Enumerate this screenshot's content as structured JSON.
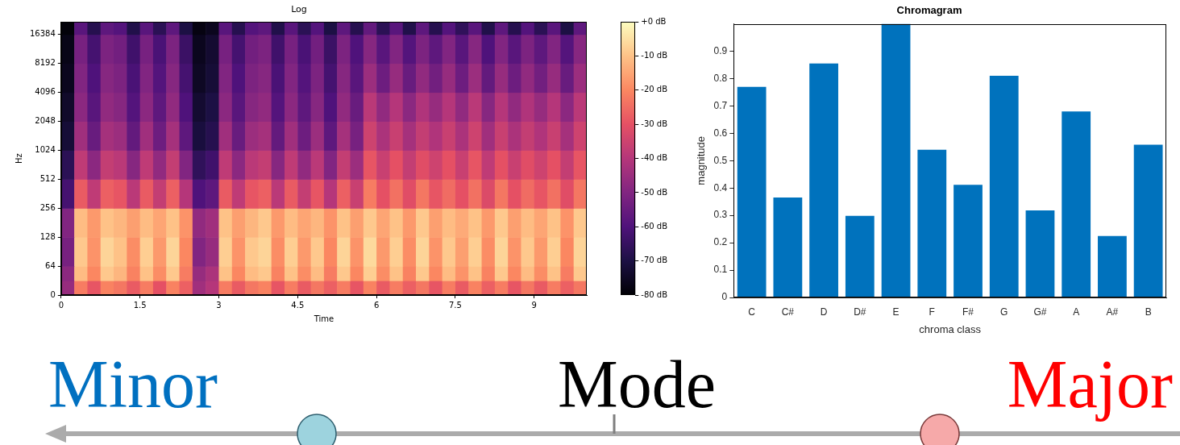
{
  "chart_data": [
    {
      "type": "heatmap",
      "title": "Log",
      "x_label": "Time",
      "y_label": "Hz",
      "log": "y",
      "grid": false,
      "xlim": [
        0,
        10
      ],
      "xticks": [
        0,
        1.5,
        3,
        4.5,
        6,
        7.5,
        9
      ],
      "ylim": [
        0,
        22050
      ],
      "yticks": [
        0,
        64,
        128,
        256,
        512,
        1024,
        2048,
        4096,
        8192,
        16384
      ],
      "x_edges": [
        0,
        0.25,
        0.5,
        0.75,
        1,
        1.25,
        1.5,
        1.75,
        2,
        2.25,
        2.5,
        2.75,
        3,
        3.25,
        3.5,
        3.75,
        4,
        4.25,
        4.5,
        4.75,
        5,
        5.25,
        5.5,
        5.75,
        6,
        6.25,
        6.5,
        6.75,
        7,
        7.25,
        7.5,
        7.75,
        8,
        8.25,
        8.5,
        8.75,
        9,
        9.25,
        9.5,
        9.75,
        10
      ],
      "y_edges": [
        0,
        32,
        64,
        128,
        256,
        512,
        1024,
        2048,
        4096,
        8192,
        16384,
        22050
      ],
      "cells": [
        [
          -46,
          -22,
          -29,
          -21,
          -23,
          -28,
          -22,
          -30,
          -21,
          -27,
          -44,
          -40,
          -22,
          -28,
          -23,
          -21,
          -29,
          -22,
          -28,
          -23,
          -27,
          -22,
          -29,
          -21,
          -28,
          -22,
          -27,
          -23,
          -29,
          -22,
          -28,
          -21,
          -27,
          -22,
          -29,
          -23,
          -28,
          -22,
          -27,
          -23
        ],
        [
          -48,
          -11,
          -20,
          -9,
          -12,
          -21,
          -10,
          -19,
          -9,
          -22,
          -46,
          -42,
          -10,
          -20,
          -11,
          -9,
          -21,
          -10,
          -19,
          -11,
          -22,
          -9,
          -20,
          -8,
          -19,
          -10,
          -21,
          -9,
          -20,
          -11,
          -18,
          -10,
          -21,
          -9,
          -20,
          -11,
          -19,
          -10,
          -22,
          -9
        ],
        [
          -52,
          -9,
          -18,
          -7,
          -10,
          -19,
          -8,
          -17,
          -7,
          -20,
          -50,
          -46,
          -8,
          -18,
          -9,
          -7,
          -19,
          -8,
          -17,
          -9,
          -20,
          -7,
          -18,
          -6,
          -17,
          -8,
          -19,
          -7,
          -18,
          -9,
          -16,
          -8,
          -19,
          -7,
          -18,
          -9,
          -17,
          -8,
          -20,
          -7
        ],
        [
          -50,
          -11,
          -17,
          -10,
          -12,
          -16,
          -11,
          -15,
          -10,
          -18,
          -47,
          -44,
          -10,
          -16,
          -12,
          -9,
          -17,
          -11,
          -15,
          -12,
          -18,
          -10,
          -16,
          -9,
          -15,
          -10,
          -17,
          -9,
          -16,
          -11,
          -14,
          -10,
          -17,
          -9,
          -16,
          -11,
          -15,
          -10,
          -18,
          -9
        ],
        [
          -62,
          -28,
          -38,
          -27,
          -29,
          -39,
          -28,
          -37,
          -27,
          -40,
          -60,
          -57,
          -28,
          -38,
          -29,
          -27,
          -39,
          -28,
          -37,
          -29,
          -40,
          -27,
          -36,
          -22,
          -30,
          -24,
          -31,
          -23,
          -29,
          -25,
          -30,
          -24,
          -32,
          -23,
          -30,
          -25,
          -29,
          -24,
          -31,
          -23
        ],
        [
          -67,
          -38,
          -48,
          -37,
          -39,
          -49,
          -38,
          -47,
          -37,
          -50,
          -66,
          -63,
          -38,
          -48,
          -39,
          -37,
          -49,
          -38,
          -47,
          -39,
          -50,
          -37,
          -45,
          -29,
          -36,
          -30,
          -37,
          -31,
          -35,
          -30,
          -36,
          -29,
          -38,
          -30,
          -36,
          -31,
          -35,
          -30,
          -37,
          -29
        ],
        [
          -72,
          -44,
          -55,
          -43,
          -45,
          -56,
          -44,
          -54,
          -43,
          -57,
          -71,
          -68,
          -44,
          -55,
          -45,
          -43,
          -56,
          -44,
          -54,
          -45,
          -57,
          -43,
          -52,
          -35,
          -42,
          -36,
          -43,
          -37,
          -41,
          -36,
          -42,
          -35,
          -44,
          -36,
          -42,
          -37,
          -41,
          -36,
          -43,
          -35
        ],
        [
          -74,
          -48,
          -58,
          -47,
          -49,
          -59,
          -48,
          -57,
          -47,
          -60,
          -73,
          -70,
          -48,
          -58,
          -49,
          -47,
          -59,
          -48,
          -57,
          -49,
          -60,
          -47,
          -55,
          -39,
          -47,
          -40,
          -48,
          -41,
          -46,
          -40,
          -47,
          -39,
          -49,
          -40,
          -47,
          -41,
          -46,
          -40,
          -48,
          -39
        ],
        [
          -76,
          -50,
          -60,
          -49,
          -51,
          -61,
          -50,
          -59,
          -49,
          -62,
          -75,
          -72,
          -50,
          -60,
          -51,
          -49,
          -61,
          -50,
          -59,
          -51,
          -62,
          -49,
          -58,
          -45,
          -54,
          -46,
          -55,
          -47,
          -53,
          -46,
          -54,
          -45,
          -56,
          -46,
          -54,
          -47,
          -53,
          -46,
          -55,
          -45
        ],
        [
          -77,
          -52,
          -62,
          -51,
          -53,
          -63,
          -52,
          -61,
          -51,
          -64,
          -76,
          -73,
          -52,
          -62,
          -53,
          -51,
          -63,
          -52,
          -61,
          -53,
          -64,
          -51,
          -60,
          -49,
          -58,
          -50,
          -59,
          -51,
          -57,
          -50,
          -58,
          -49,
          -60,
          -50,
          -58,
          -51,
          -57,
          -50,
          -59,
          -49
        ],
        [
          -79,
          -58,
          -68,
          -57,
          -59,
          -69,
          -58,
          -67,
          -57,
          -70,
          -78,
          -76,
          -58,
          -68,
          -59,
          -57,
          -69,
          -58,
          -67,
          -59,
          -70,
          -57,
          -68,
          -56,
          -67,
          -58,
          -69,
          -57,
          -68,
          -59,
          -66,
          -58,
          -69,
          -57,
          -68,
          -59,
          -67,
          -58,
          -70,
          -57
        ]
      ],
      "colorbar_range": [
        -80,
        0
      ],
      "colorbar_ticks": [
        {
          "value": 0,
          "label": "+0 dB"
        },
        {
          "value": -10,
          "label": "-10 dB"
        },
        {
          "value": -20,
          "label": "-20 dB"
        },
        {
          "value": -30,
          "label": "-30 dB"
        },
        {
          "value": -40,
          "label": "-40 dB"
        },
        {
          "value": -50,
          "label": "-50 dB"
        },
        {
          "value": -60,
          "label": "-60 dB"
        },
        {
          "value": -70,
          "label": "-70 dB"
        },
        {
          "value": -80,
          "label": "-80 dB"
        }
      ]
    },
    {
      "type": "bar",
      "title": "Chromagram",
      "x_label": "chroma class",
      "y_label": "magnitude",
      "categories": [
        "C",
        "C#",
        "D",
        "D#",
        "E",
        "F",
        "F#",
        "G",
        "G#",
        "A",
        "A#",
        "B"
      ],
      "values": [
        0.77,
        0.365,
        0.855,
        0.298,
        1.0,
        0.54,
        0.412,
        0.81,
        0.318,
        0.68,
        0.225,
        0.558
      ],
      "color": "#0072bd",
      "grid": false,
      "ylim": [
        0,
        1
      ],
      "yticks": [
        0,
        0.1,
        0.2,
        0.3,
        0.4,
        0.5,
        0.6,
        0.7,
        0.8,
        0.9
      ]
    }
  ],
  "mode_scale": {
    "title": "Mode",
    "left": "Minor",
    "right": "Major"
  }
}
